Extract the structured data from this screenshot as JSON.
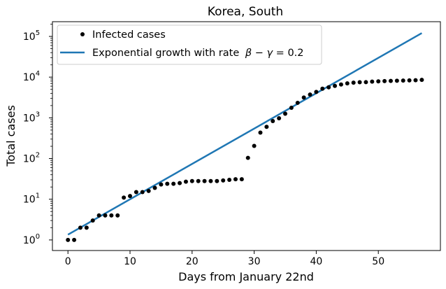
{
  "chart_data": {
    "type": "scatter",
    "title": "Korea, South",
    "xlabel": "Days from January 22nd",
    "ylabel": "Total cases",
    "xlim": [
      -2.5,
      60
    ],
    "yscale": "log",
    "ylim": [
      0.55,
      230000
    ],
    "xticks": [
      0,
      10,
      20,
      30,
      40,
      50
    ],
    "yticks": [
      {
        "value": 1,
        "base": "10",
        "exp": "0"
      },
      {
        "value": 10,
        "base": "10",
        "exp": "1"
      },
      {
        "value": 100,
        "base": "10",
        "exp": "2"
      },
      {
        "value": 1000,
        "base": "10",
        "exp": "3"
      },
      {
        "value": 10000,
        "base": "10",
        "exp": "4"
      },
      {
        "value": 100000,
        "base": "10",
        "exp": "5"
      }
    ],
    "legend_position": "top-left",
    "series": [
      {
        "name": "Infected cases",
        "kind": "scatter",
        "color": "#000000",
        "x": [
          0,
          1,
          2,
          3,
          4,
          5,
          6,
          7,
          8,
          9,
          10,
          11,
          12,
          13,
          14,
          15,
          16,
          17,
          18,
          19,
          20,
          21,
          22,
          23,
          24,
          25,
          26,
          27,
          28,
          29,
          30,
          31,
          32,
          33,
          34,
          35,
          36,
          37,
          38,
          39,
          40,
          41,
          42,
          43,
          44,
          45,
          46,
          47,
          48,
          49,
          50,
          51,
          52,
          53,
          54,
          55,
          56,
          57
        ],
        "y": [
          1,
          1,
          2,
          2,
          3,
          4,
          4,
          4,
          4,
          11,
          12,
          15,
          15,
          16,
          19,
          23,
          24,
          24,
          25,
          27,
          28,
          28,
          28,
          28,
          28,
          29,
          30,
          31,
          31,
          104,
          204,
          433,
          602,
          833,
          977,
          1261,
          1766,
          2337,
          3150,
          3736,
          4335,
          5186,
          5621,
          6088,
          6593,
          7041,
          7313,
          7478,
          7513,
          7755,
          7869,
          7979,
          8086,
          8162,
          8236,
          8320,
          8413,
          8565
        ]
      },
      {
        "name": "Exponential growth with rate",
        "legend_math_prefix": "β − γ = ",
        "legend_math_value": "0.2",
        "kind": "line",
        "color": "#1f77b4",
        "x_start": 0,
        "x_end": 57,
        "y_start": 1.35,
        "rate": 0.2
      }
    ]
  }
}
